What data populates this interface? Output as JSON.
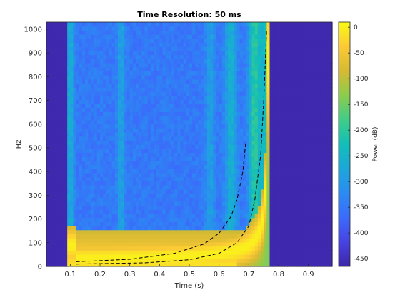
{
  "chart_data": {
    "type": "heatmap",
    "title": "Time Resolution: 50 ms",
    "xlabel": "Time (s)",
    "ylabel": "Hz",
    "xlim": [
      0.02,
      0.98
    ],
    "ylim": [
      0,
      1030
    ],
    "x_ticks": [
      0.1,
      0.2,
      0.3,
      0.4,
      0.5,
      0.6,
      0.7,
      0.8,
      0.9
    ],
    "x_tick_labels": [
      "0.1",
      "0.2",
      "0.3",
      "0.4",
      "0.5",
      "0.6",
      "0.7",
      "0.8",
      "0.9"
    ],
    "y_ticks": [
      0,
      100,
      200,
      300,
      400,
      500,
      600,
      700,
      800,
      900,
      1000
    ],
    "y_tick_labels": [
      "0",
      "100",
      "200",
      "300",
      "400",
      "500",
      "600",
      "700",
      "800",
      "900",
      "1000"
    ],
    "colormap": "parula",
    "colorbar": {
      "label": "Power (dB)",
      "range": [
        -465,
        10
      ],
      "ticks": [
        0,
        -50,
        -100,
        -150,
        -200,
        -250,
        -300,
        -350,
        -400,
        -450
      ],
      "tick_labels": [
        "0",
        "-50",
        "-100",
        "-150",
        "-200",
        "-250",
        "-300",
        "-350",
        "-400",
        "-450"
      ]
    },
    "signal": {
      "description_visible": "chirp ridge with two dashed instantaneous-frequency curves",
      "start_time": 0.1,
      "end_time": 0.77,
      "asymptote_time_1": 0.7,
      "asymptote_time_2": 0.77,
      "background_level_db": -460,
      "noise_floor_db": -350,
      "ridge_level_db": 0
    },
    "dashed_curves": [
      {
        "points": [
          [
            0.12,
            20
          ],
          [
            0.3,
            30
          ],
          [
            0.45,
            55
          ],
          [
            0.55,
            95
          ],
          [
            0.6,
            140
          ],
          [
            0.64,
            210
          ],
          [
            0.66,
            280
          ],
          [
            0.68,
            400
          ],
          [
            0.69,
            530
          ]
        ]
      },
      {
        "points": [
          [
            0.12,
            10
          ],
          [
            0.35,
            15
          ],
          [
            0.5,
            28
          ],
          [
            0.6,
            55
          ],
          [
            0.66,
            100
          ],
          [
            0.7,
            170
          ],
          [
            0.72,
            280
          ],
          [
            0.74,
            470
          ],
          [
            0.75,
            700
          ],
          [
            0.76,
            1000
          ]
        ]
      }
    ]
  }
}
